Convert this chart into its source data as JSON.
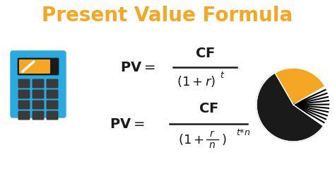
{
  "title": "Present Value Formula",
  "title_color": "#F5A623",
  "title_fontsize": 20,
  "bg_color": "#ffffff",
  "formula_color": "#1a1a1a",
  "calc_body_color": "#29ABE2",
  "calc_screen_bg": "#1a1a1a",
  "calc_screen_orange": "#F5A623",
  "calc_btn_color": "#3d7a9e",
  "calc_btn_dark": "#1a1a1a",
  "pie_orange": "#F5A623",
  "pie_black": "#1a1a1a",
  "pie_stripe_bg": "#ffffff",
  "figsize": [
    4.74,
    2.43
  ],
  "dpi": 100
}
